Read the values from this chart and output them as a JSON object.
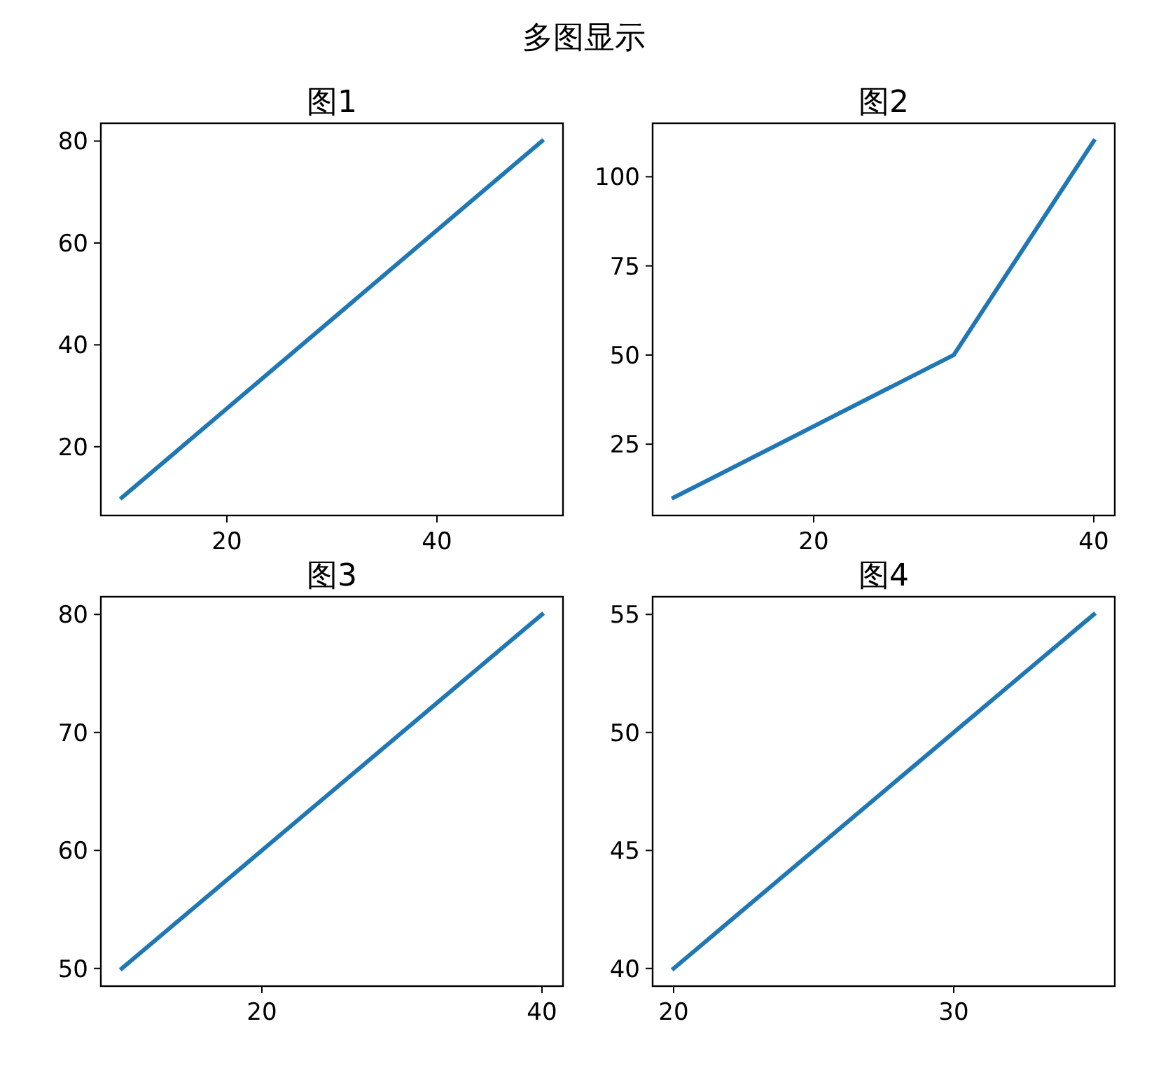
{
  "chart_data": [
    {
      "type": "other",
      "title": "多图显示"
    },
    {
      "type": "line",
      "title": "图1",
      "x": [
        10,
        50
      ],
      "series": [
        {
          "color": "#1f77b4",
          "values": [
            10,
            80
          ]
        }
      ],
      "xlim": [
        8,
        52
      ],
      "ylim": [
        6.5,
        83.5
      ],
      "xticks": [
        20,
        40
      ],
      "yticks": [
        20,
        40,
        60,
        80
      ]
    },
    {
      "type": "line",
      "title": "图2",
      "x": [
        10,
        30,
        40
      ],
      "series": [
        {
          "color": "#1f77b4",
          "values": [
            10,
            50,
            110
          ]
        }
      ],
      "xlim": [
        8.5,
        41.5
      ],
      "ylim": [
        5,
        115
      ],
      "xticks": [
        20,
        40
      ],
      "yticks": [
        25,
        50,
        75,
        100
      ]
    },
    {
      "type": "line",
      "title": "图3",
      "x": [
        10,
        40
      ],
      "series": [
        {
          "color": "#1f77b4",
          "values": [
            50,
            80
          ]
        }
      ],
      "xlim": [
        8.5,
        41.5
      ],
      "ylim": [
        48.5,
        81.5
      ],
      "xticks": [
        20,
        40
      ],
      "yticks": [
        50,
        60,
        70,
        80
      ]
    },
    {
      "type": "line",
      "title": "图4",
      "x": [
        20,
        35
      ],
      "series": [
        {
          "color": "#1f77b4",
          "values": [
            40,
            55
          ]
        }
      ],
      "xlim": [
        19.25,
        35.75
      ],
      "ylim": [
        39.25,
        55.75
      ],
      "xticks": [
        20,
        30
      ],
      "yticks": [
        40,
        45,
        50,
        55
      ]
    }
  ]
}
